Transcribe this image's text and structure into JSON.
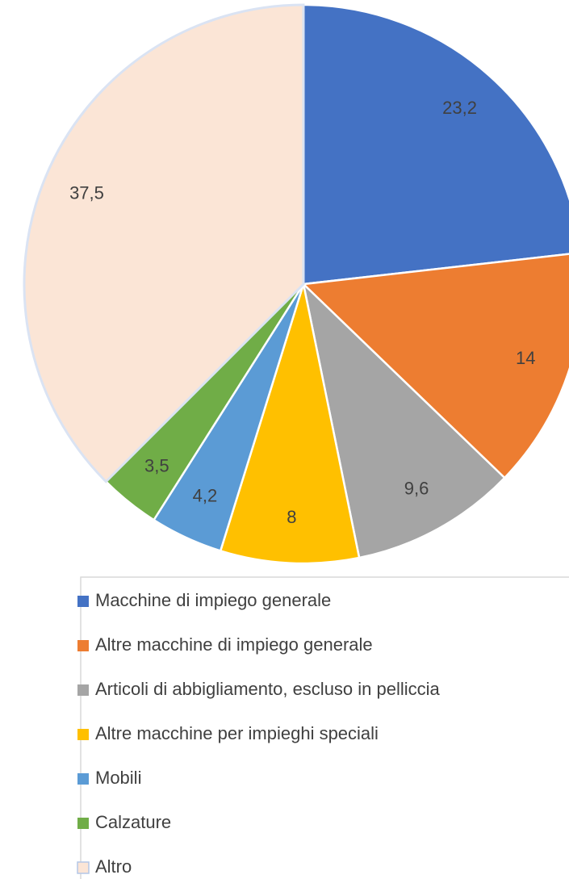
{
  "chart_data": {
    "type": "pie",
    "categories": [
      "Macchine di impiego generale",
      "Altre macchine di impiego generale",
      "Articoli di abbigliamento, escluso in pelliccia",
      "Altre macchine per impieghi speciali",
      "Mobili",
      "Calzature",
      "Altro"
    ],
    "values": [
      23.2,
      14,
      9.6,
      8,
      4.2,
      3.5,
      37.5
    ],
    "value_labels": [
      "23,2",
      "14",
      "9,6",
      "8",
      "4,2",
      "3,5",
      "37,5"
    ],
    "colors": [
      "#4472c4",
      "#ed7d31",
      "#a5a5a5",
      "#ffc000",
      "#5b9bd5",
      "#70ad47",
      "#fbe5d6"
    ],
    "legend": "bottom"
  }
}
